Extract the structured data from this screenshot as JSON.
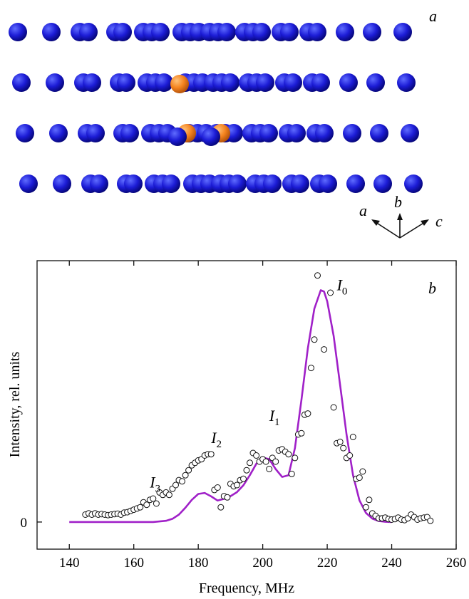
{
  "panel_a": {
    "label": "a",
    "axes_labels": [
      "a",
      "b",
      "c"
    ],
    "atom_colors": {
      "host": "#1c1cd6",
      "dopant": "#f5841f"
    }
  },
  "panel_b": {
    "label": "b"
  },
  "chart_data": {
    "type": "scatter",
    "xlabel": "Frequency, MHz",
    "ylabel": "Intensity, rel. units",
    "xlim": [
      130,
      260
    ],
    "ylim": [
      -0.11,
      1.06
    ],
    "x_ticks": [
      140,
      160,
      180,
      200,
      220,
      240,
      260
    ],
    "y_ticks": [
      {
        "value": 0,
        "label": "0"
      }
    ],
    "grid": false,
    "annotations": [
      {
        "main": "I",
        "sub": "0",
        "x": 223,
        "y": 0.94
      },
      {
        "main": "I",
        "sub": "1",
        "x": 202,
        "y": 0.41
      },
      {
        "main": "I",
        "sub": "2",
        "x": 184,
        "y": 0.32
      },
      {
        "main": "I",
        "sub": "3",
        "x": 165,
        "y": 0.14
      }
    ],
    "series": [
      {
        "kind": "points",
        "marker": "open-circle",
        "points": [
          [
            145,
            0.03
          ],
          [
            146,
            0.035
          ],
          [
            147,
            0.03
          ],
          [
            148,
            0.035
          ],
          [
            149,
            0.03
          ],
          [
            150,
            0.032
          ],
          [
            151,
            0.03
          ],
          [
            152,
            0.028
          ],
          [
            153,
            0.03
          ],
          [
            154,
            0.032
          ],
          [
            155,
            0.034
          ],
          [
            156,
            0.03
          ],
          [
            157,
            0.038
          ],
          [
            158,
            0.04
          ],
          [
            159,
            0.045
          ],
          [
            160,
            0.05
          ],
          [
            161,
            0.055
          ],
          [
            162,
            0.06
          ],
          [
            163,
            0.08
          ],
          [
            164,
            0.07
          ],
          [
            165,
            0.09
          ],
          [
            166,
            0.095
          ],
          [
            167,
            0.075
          ],
          [
            168,
            0.12
          ],
          [
            169,
            0.11
          ],
          [
            170,
            0.12
          ],
          [
            171,
            0.11
          ],
          [
            172,
            0.135
          ],
          [
            173,
            0.15
          ],
          [
            174,
            0.17
          ],
          [
            175,
            0.165
          ],
          [
            176,
            0.19
          ],
          [
            177,
            0.21
          ],
          [
            178,
            0.23
          ],
          [
            179,
            0.24
          ],
          [
            180,
            0.25
          ],
          [
            181,
            0.255
          ],
          [
            182,
            0.27
          ],
          [
            183,
            0.275
          ],
          [
            184,
            0.275
          ],
          [
            185,
            0.13
          ],
          [
            186,
            0.14
          ],
          [
            187,
            0.06
          ],
          [
            188,
            0.105
          ],
          [
            189,
            0.1
          ],
          [
            190,
            0.155
          ],
          [
            191,
            0.145
          ],
          [
            192,
            0.15
          ],
          [
            193,
            0.17
          ],
          [
            194,
            0.175
          ],
          [
            195,
            0.21
          ],
          [
            196,
            0.24
          ],
          [
            197,
            0.28
          ],
          [
            198,
            0.27
          ],
          [
            199,
            0.245
          ],
          [
            200,
            0.255
          ],
          [
            201,
            0.245
          ],
          [
            202,
            0.215
          ],
          [
            203,
            0.26
          ],
          [
            204,
            0.245
          ],
          [
            205,
            0.29
          ],
          [
            206,
            0.295
          ],
          [
            207,
            0.285
          ],
          [
            208,
            0.275
          ],
          [
            209,
            0.195
          ],
          [
            210,
            0.26
          ],
          [
            211,
            0.355
          ],
          [
            212,
            0.36
          ],
          [
            213,
            0.435
          ],
          [
            214,
            0.44
          ],
          [
            215,
            0.625
          ],
          [
            216,
            0.74
          ],
          [
            217,
            1.0
          ],
          [
            219,
            0.7
          ],
          [
            221,
            0.93
          ],
          [
            222,
            0.465
          ],
          [
            223,
            0.32
          ],
          [
            224,
            0.325
          ],
          [
            225,
            0.3
          ],
          [
            226,
            0.26
          ],
          [
            227,
            0.27
          ],
          [
            228,
            0.345
          ],
          [
            229,
            0.175
          ],
          [
            230,
            0.18
          ],
          [
            231,
            0.205
          ],
          [
            232,
            0.06
          ],
          [
            233,
            0.09
          ],
          [
            234,
            0.035
          ],
          [
            235,
            0.025
          ],
          [
            236,
            0.015
          ],
          [
            237,
            0.015
          ],
          [
            238,
            0.018
          ],
          [
            239,
            0.012
          ],
          [
            240,
            0.01
          ],
          [
            241,
            0.012
          ],
          [
            242,
            0.018
          ],
          [
            243,
            0.01
          ],
          [
            244,
            0.008
          ],
          [
            245,
            0.015
          ],
          [
            246,
            0.03
          ],
          [
            247,
            0.02
          ],
          [
            248,
            0.01
          ],
          [
            249,
            0.015
          ],
          [
            250,
            0.018
          ],
          [
            251,
            0.02
          ],
          [
            252,
            0.005
          ]
        ]
      },
      {
        "kind": "line",
        "color": "#a020c8",
        "points": [
          [
            140,
            0.0
          ],
          [
            160,
            0.0
          ],
          [
            166,
            0.0
          ],
          [
            170,
            0.005
          ],
          [
            172,
            0.013
          ],
          [
            174,
            0.03
          ],
          [
            176,
            0.058
          ],
          [
            178,
            0.09
          ],
          [
            180,
            0.114
          ],
          [
            182,
            0.118
          ],
          [
            184,
            0.104
          ],
          [
            186,
            0.087
          ],
          [
            188,
            0.094
          ],
          [
            190,
            0.105
          ],
          [
            192,
            0.121
          ],
          [
            194,
            0.149
          ],
          [
            196,
            0.19
          ],
          [
            198,
            0.236
          ],
          [
            200,
            0.262
          ],
          [
            202,
            0.255
          ],
          [
            204,
            0.215
          ],
          [
            206,
            0.183
          ],
          [
            208,
            0.19
          ],
          [
            210,
            0.3
          ],
          [
            212,
            0.495
          ],
          [
            214,
            0.705
          ],
          [
            216,
            0.865
          ],
          [
            218,
            0.94
          ],
          [
            219,
            0.935
          ],
          [
            220,
            0.895
          ],
          [
            222,
            0.755
          ],
          [
            224,
            0.555
          ],
          [
            226,
            0.355
          ],
          [
            228,
            0.19
          ],
          [
            230,
            0.088
          ],
          [
            232,
            0.037
          ],
          [
            234,
            0.014
          ],
          [
            236,
            0.004
          ],
          [
            238,
            0.001
          ],
          [
            240,
            0.0
          ]
        ]
      }
    ]
  }
}
